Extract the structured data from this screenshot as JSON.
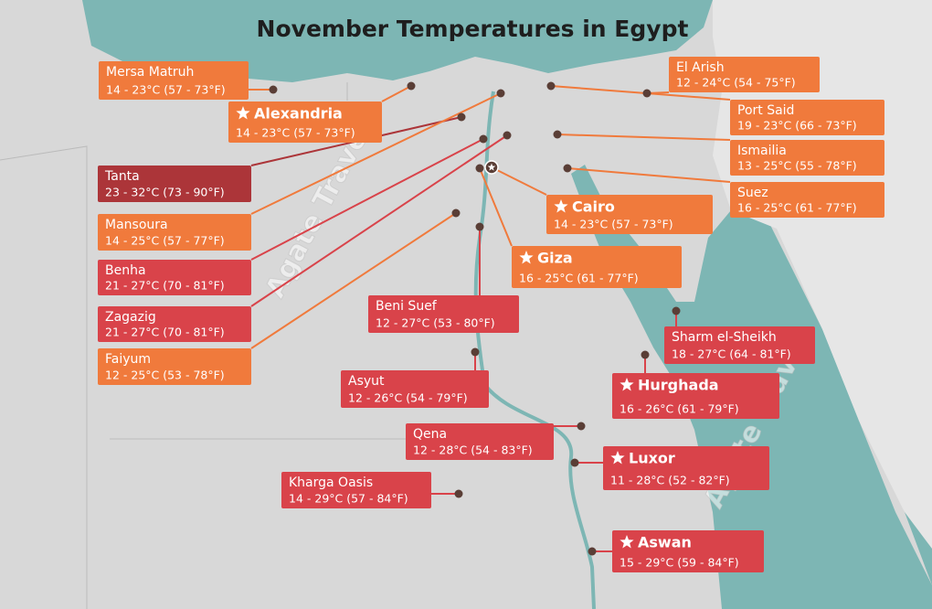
{
  "title": "November Temperatures in Egypt",
  "watermarks": [
    "Agate Travel",
    "Agate Travel"
  ],
  "cities": [
    {
      "name": "Mersa Matruh",
      "temps": "14 - 23°C (57 - 73°F)",
      "color": "#f07a3c"
    },
    {
      "name": "Alexandria",
      "temps": "14 - 23°C (57 - 73°F)",
      "color": "#f07a3c",
      "featured": true
    },
    {
      "name": "Tanta",
      "temps": "23 - 32°C (73 - 90°F)",
      "color": "#ac3539"
    },
    {
      "name": "Mansoura",
      "temps": "14 - 25°C (57 - 77°F)",
      "color": "#f07a3c"
    },
    {
      "name": "Benha",
      "temps": "21 - 27°C (70 - 81°F)",
      "color": "#d9434a"
    },
    {
      "name": "Zagazig",
      "temps": "21 - 27°C (70 - 81°F)",
      "color": "#d9434a"
    },
    {
      "name": "Faiyum",
      "temps": "12 - 25°C (53 - 78°F)",
      "color": "#f07a3c"
    },
    {
      "name": "El Arish",
      "temps": "12 - 24°C (54 - 75°F)",
      "color": "#f07a3c"
    },
    {
      "name": "Port Said",
      "temps": "19 - 23°C (66 - 73°F)",
      "color": "#f07a3c"
    },
    {
      "name": "Ismailia",
      "temps": "13 - 25°C (55 - 78°F)",
      "color": "#f07a3c"
    },
    {
      "name": "Suez",
      "temps": "16 - 25°C (61 - 77°F)",
      "color": "#f07a3c"
    },
    {
      "name": "Cairo",
      "temps": "14 - 23°C (57 - 73°F)",
      "color": "#f07a3c",
      "featured": true
    },
    {
      "name": "Giza",
      "temps": "16 - 25°C (61 - 77°F)",
      "color": "#f07a3c",
      "featured": true
    },
    {
      "name": "Beni Suef",
      "temps": "12 - 27°C (53 - 80°F)",
      "color": "#d9434a"
    },
    {
      "name": "Asyut",
      "temps": "12 - 26°C (54 - 79°F)",
      "color": "#d9434a"
    },
    {
      "name": "Qena",
      "temps": "12 - 28°C (54 - 83°F)",
      "color": "#d9434a"
    },
    {
      "name": "Luxor",
      "temps": "11 - 28°C (52 - 82°F)",
      "color": "#d9434a",
      "featured": true
    },
    {
      "name": "Kharga Oasis",
      "temps": "14 - 29°C (57 - 84°F)",
      "color": "#d9434a"
    },
    {
      "name": "Sharm el-Sheikh",
      "temps": "18 - 27°C (64 - 81°F)",
      "color": "#d9434a"
    },
    {
      "name": "Hurghada",
      "temps": "16 - 26°C (61 - 79°F)",
      "color": "#d9434a",
      "featured": true
    },
    {
      "name": "Aswan",
      "temps": "15 - 29°C (59 - 84°F)",
      "color": "#d9434a",
      "featured": true
    }
  ]
}
